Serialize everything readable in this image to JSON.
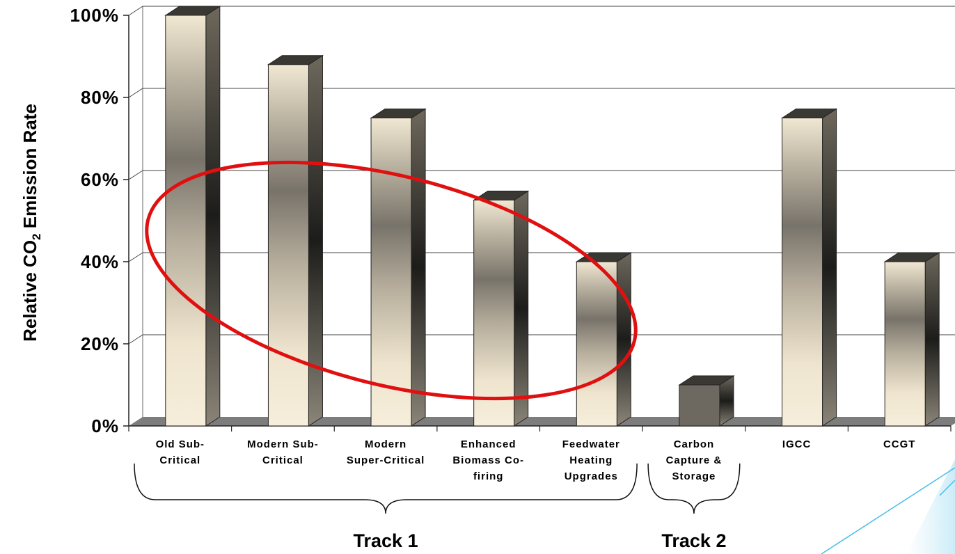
{
  "chart_data": {
    "type": "bar",
    "categories": [
      [
        "Old Sub-",
        "Critical"
      ],
      [
        "Modern Sub-",
        "Critical"
      ],
      [
        "Modern",
        "Super-Critical"
      ],
      [
        "Enhanced",
        "Biomass Co-",
        "firing"
      ],
      [
        "Feedwater",
        "Heating",
        "Upgrades"
      ],
      [
        "Carbon",
        "Capture &",
        "Storage"
      ],
      [
        "IGCC"
      ],
      [
        "CCGT"
      ]
    ],
    "values": [
      100,
      88,
      75,
      55,
      40,
      10,
      75,
      40
    ],
    "ylabel": {
      "prefix": "Relative CO",
      "subscript": "2",
      "suffix": " Emission Rate"
    },
    "ylim": [
      0,
      100
    ],
    "yticks": [
      "0%",
      "20%",
      "40%",
      "60%",
      "80%",
      "100%"
    ],
    "grid": true,
    "groups": [
      {
        "label": "Track 1"
      },
      {
        "label": "Track 2"
      }
    ],
    "annotation": "red ellipse around bars 1-5",
    "colors": {
      "bar_light": "#f3ead6",
      "bar_dark": "#6e6960",
      "bar_side": "#7a7468",
      "bar_top": "#3a3833",
      "highlight": "#e01010",
      "accent": "#3fc0ea"
    }
  }
}
